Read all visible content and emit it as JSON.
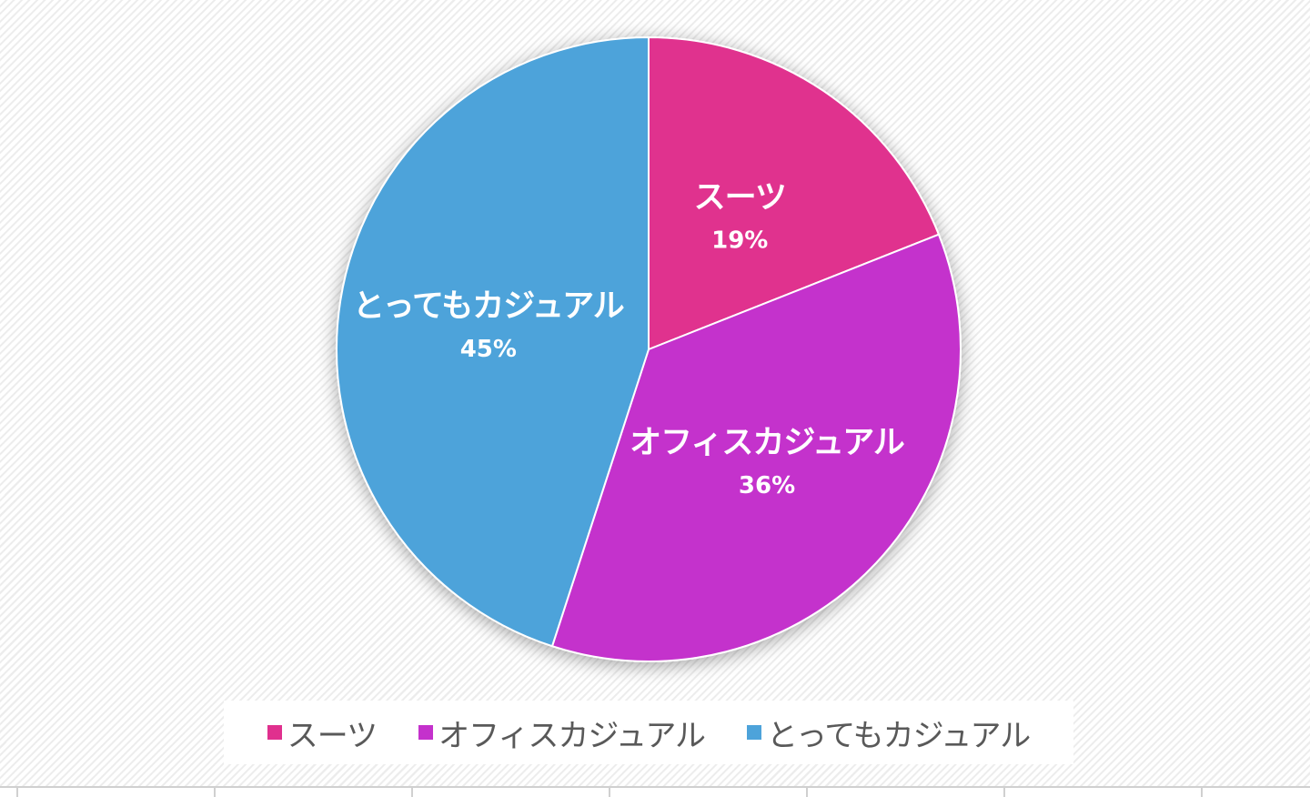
{
  "chart_data": {
    "type": "pie",
    "categories": [
      "スーツ",
      "オフィスカジュアル",
      "とってもカジュアル"
    ],
    "values": [
      19,
      36,
      45
    ],
    "data_labels": [
      "19%",
      "36%",
      "45%"
    ],
    "colors": [
      "#e0308e",
      "#c431cc",
      "#4da3da"
    ],
    "start_angle_deg": 0,
    "direction": "clockwise",
    "legend_position": "bottom",
    "title": ""
  }
}
